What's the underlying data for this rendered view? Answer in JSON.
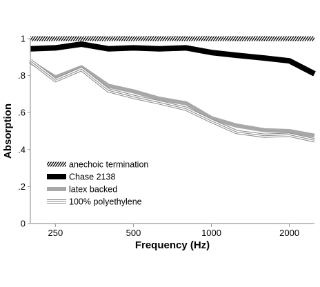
{
  "chart_data": {
    "type": "line",
    "xlabel": "Frequency (Hz)",
    "ylabel": "Absorption",
    "x_scale": "log",
    "x": [
      200,
      250,
      315,
      400,
      500,
      630,
      800,
      1000,
      1250,
      1600,
      2000,
      2500
    ],
    "xlim": [
      200,
      2500
    ],
    "ylim": [
      0,
      1
    ],
    "x_ticks": [
      {
        "value": 250,
        "label": "250"
      },
      {
        "value": 500,
        "label": "500"
      },
      {
        "value": 1000,
        "label": "1000"
      },
      {
        "value": 2000,
        "label": "2000"
      }
    ],
    "y_ticks": [
      {
        "value": 0,
        "label": "0"
      },
      {
        "value": 0.2,
        "label": ".2"
      },
      {
        "value": 0.4,
        "label": ".4"
      },
      {
        "value": 0.6,
        "label": ".6"
      },
      {
        "value": 0.8,
        "label": ".8"
      },
      {
        "value": 1,
        "label": "1"
      }
    ],
    "legend_position": "bottom-left",
    "grid": false,
    "series": [
      {
        "name": "anechoic termination",
        "style": "hatched",
        "color": "#000000",
        "values": [
          1,
          1,
          1,
          1,
          1,
          1,
          1,
          1,
          1,
          1,
          1,
          1
        ]
      },
      {
        "name": "Chase 2138",
        "style": "thick",
        "color": "#000000",
        "values": [
          0.945,
          0.95,
          0.97,
          0.945,
          0.95,
          0.945,
          0.95,
          0.925,
          0.91,
          0.895,
          0.88,
          0.81
        ]
      },
      {
        "name": "latex backed",
        "style": "medium",
        "color": "#a8a8a8",
        "values": [
          0.875,
          0.79,
          0.845,
          0.745,
          0.715,
          0.675,
          0.65,
          0.57,
          0.53,
          0.505,
          0.5,
          0.475
        ]
      },
      {
        "name": "100% polyethylene",
        "style": "triple",
        "color": "#888888",
        "values": [
          0.88,
          0.775,
          0.835,
          0.72,
          0.685,
          0.655,
          0.62,
          0.555,
          0.495,
          0.475,
          0.48,
          0.45
        ]
      }
    ]
  }
}
